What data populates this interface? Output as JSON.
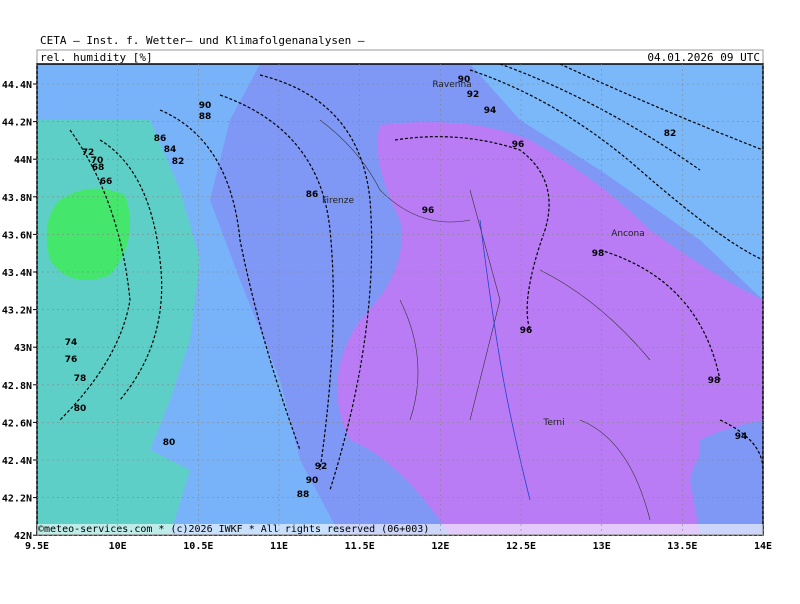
{
  "header": {
    "model": "CETA — Inst. f. Wetter— und Klimafolgenanalysen —",
    "variable": "rel. humidity [%]",
    "datetime": "04.01.2026 09 UTC"
  },
  "map": {
    "lat_ticks": [
      "44.4N",
      "44.2N",
      "44N",
      "43.8N",
      "43.6N",
      "43.4N",
      "43.2N",
      "43N",
      "42.8N",
      "42.6N",
      "42.4N",
      "42.2N",
      "42N"
    ],
    "lon_ticks": [
      "9.5E",
      "10E",
      "10.5E",
      "11E",
      "11.5E",
      "12E",
      "12.5E",
      "13E",
      "13.5E",
      "14E"
    ],
    "cities": [
      "Ravenna",
      "Firenze",
      "Ancona",
      "Terni"
    ],
    "contour_labels": [
      "90",
      "88",
      "86",
      "84",
      "82",
      "72",
      "70",
      "68",
      "66",
      "86",
      "96",
      "90",
      "92",
      "94",
      "96",
      "82",
      "98",
      "96",
      "98",
      "94",
      "74",
      "76",
      "78",
      "80",
      "80",
      "92",
      "90",
      "88"
    ],
    "footer": "©meteo-services.com * (c)2026 IWKF * All rights reserved (06+003)"
  }
}
